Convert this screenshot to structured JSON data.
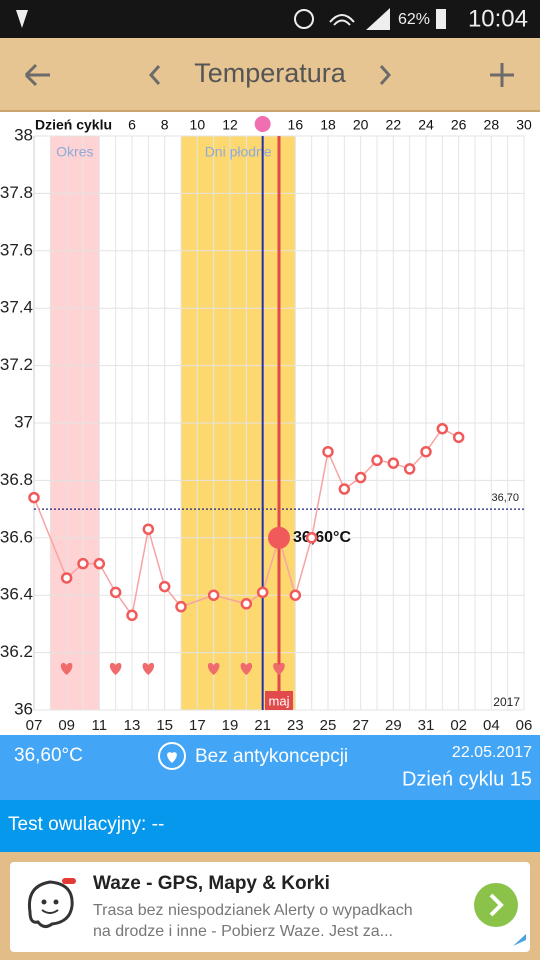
{
  "status_bar": {
    "battery": "62%",
    "time": "10:04"
  },
  "toolbar": {
    "title": "Temperatura"
  },
  "chart_data": {
    "type": "line",
    "x2label": "Dzień cyklu",
    "x": [
      0,
      2,
      3,
      4,
      5,
      6,
      7,
      8,
      9,
      11,
      13,
      14,
      15,
      16,
      17,
      18,
      19,
      20,
      21,
      22,
      23,
      24,
      25,
      26
    ],
    "values": [
      36.74,
      36.46,
      36.51,
      36.51,
      36.41,
      36.33,
      36.63,
      36.43,
      36.36,
      36.4,
      36.37,
      36.41,
      36.6,
      36.4,
      36.6,
      36.9,
      36.77,
      36.81,
      36.87,
      36.86,
      36.84,
      36.9,
      36.98,
      36.95
    ],
    "value_labels": [
      null,
      null,
      null,
      null,
      null,
      null,
      null,
      null,
      null,
      null,
      null,
      null,
      "36,60°C",
      null,
      null,
      null,
      null,
      null,
      null,
      null,
      null,
      null,
      null,
      null
    ],
    "color": "#f05a5a",
    "xlim": [
      0,
      30
    ],
    "xticks": [
      {
        "value": 0,
        "label": "07"
      },
      {
        "value": 2,
        "label": "09"
      },
      {
        "value": 4,
        "label": "11"
      },
      {
        "value": 6,
        "label": "13"
      },
      {
        "value": 8,
        "label": "15"
      },
      {
        "value": 10,
        "label": "17"
      },
      {
        "value": 12,
        "label": "19"
      },
      {
        "value": 14,
        "label": "21"
      },
      {
        "value": 16,
        "label": "23"
      },
      {
        "value": 18,
        "label": "25"
      },
      {
        "value": 20,
        "label": "27"
      },
      {
        "value": 22,
        "label": "29"
      },
      {
        "value": 24,
        "label": "31"
      },
      {
        "value": 26,
        "label": "02"
      },
      {
        "value": 28,
        "label": "04"
      },
      {
        "value": 30,
        "label": "06"
      }
    ],
    "x2ticks": [
      6,
      8,
      10,
      12,
      16,
      18,
      20,
      22,
      24,
      26,
      28,
      30
    ],
    "ylim": [
      36,
      38
    ],
    "yticks": [
      36,
      36.2,
      36.4,
      36.6,
      36.8,
      37,
      37.2,
      37.4,
      37.6,
      37.8,
      38
    ],
    "grid": true,
    "bands": [
      {
        "label": "Okres",
        "from": 1,
        "to": 4,
        "color": "#ffd3d3"
      },
      {
        "label": "Dni płodne",
        "from": 9,
        "to": 16,
        "color": "#fcd86f"
      }
    ],
    "cover_line": {
      "value": 36.7,
      "label": "36,70"
    },
    "ovulation_x": 14,
    "selected_x": 15,
    "month_label": "maj",
    "year_label": "2017",
    "hearts": [
      2,
      5,
      7,
      11,
      13,
      15
    ]
  },
  "info": {
    "temperature": "36,60°C",
    "contraception": "Bez antykoncepcji",
    "date": "22.05.2017",
    "cycle_day": "Dzień cyklu 15",
    "ovulation_test": "Test owulacyjny: --"
  },
  "ad": {
    "title": "Waze - GPS, Mapy & Korki",
    "lines": [
      "Trasa bez niespodzianek Alerty o wypadkach",
      "na drodze i inne - Pobierz Waze. Jest za..."
    ]
  }
}
